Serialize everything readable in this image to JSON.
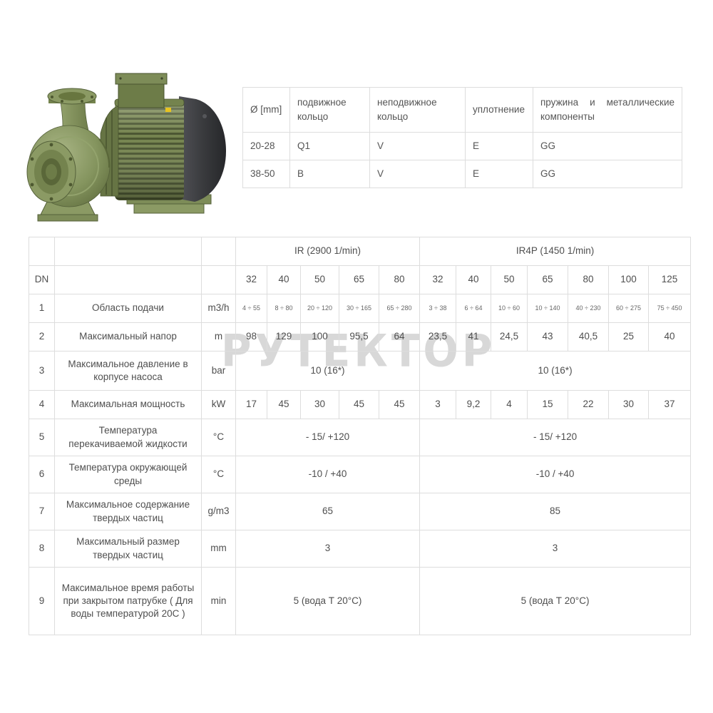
{
  "pump_photo": {
    "description": "green centrifugal pump with electric motor, front-left suction flange, top discharge flange, dark fan cover",
    "colors": {
      "green_light": "#a4b07e",
      "green_mid": "#7d8c58",
      "green_dark": "#55613a",
      "green_deep": "#454f2c",
      "fan_cover_dark": "#2e2f31",
      "fan_cover_light": "#515257",
      "label_yellow": "#e8c31f"
    }
  },
  "watermark": {
    "text": "РУТЕКТОР",
    "color": "#d4d4d4"
  },
  "seal_table": {
    "headers": [
      "Ø [mm]",
      "подвижное кольцо",
      "неподвижное кольцо",
      "уплотнение",
      "пружина и металлические компоненты"
    ],
    "rows": [
      [
        "20-28",
        "Q1",
        "V",
        "E",
        "GG"
      ],
      [
        "38-50",
        "B",
        "V",
        "E",
        "GG"
      ]
    ]
  },
  "spec_table": {
    "group_headers": [
      {
        "label": "IR (2900 1/min)",
        "span": 5
      },
      {
        "label": "IR4P (1450 1/min)",
        "span": 7
      }
    ],
    "dn_label": "DN",
    "dn_values": [
      "32",
      "40",
      "50",
      "65",
      "80",
      "32",
      "40",
      "50",
      "65",
      "80",
      "100",
      "125"
    ],
    "rows": [
      {
        "num": "1",
        "name": "Область подачи",
        "unit": "m3/h",
        "type": "cells",
        "small": true,
        "values": [
          "4 ÷ 55",
          "8 ÷ 80",
          "20 ÷ 120",
          "30 ÷ 165",
          "65 ÷ 280",
          "3 ÷ 38",
          "6 ÷ 64",
          "10 ÷ 60",
          "10 ÷ 140",
          "40 ÷ 230",
          "60 ÷ 275",
          "75 ÷ 450"
        ]
      },
      {
        "num": "2",
        "name": "Максимальный напор",
        "unit": "m",
        "type": "cells",
        "values": [
          "98",
          "129",
          "100",
          "95,5",
          "64",
          "23,5",
          "41",
          "24,5",
          "43",
          "40,5",
          "25",
          "40"
        ]
      },
      {
        "num": "3",
        "name": "Максимальное давление в корпусе насоса",
        "unit": "bar",
        "type": "merged",
        "ir": "10 (16*)",
        "ir4p": "10 (16*)"
      },
      {
        "num": "4",
        "name": "Максимальная мощность",
        "unit": "kW",
        "type": "cells",
        "values": [
          "17",
          "45",
          "30",
          "45",
          "45",
          "3",
          "9,2",
          "4",
          "15",
          "22",
          "30",
          "37"
        ]
      },
      {
        "num": "5",
        "name": "Температура перекачиваемой жидкости",
        "unit": "°C",
        "type": "merged",
        "ir": "- 15/ +120",
        "ir4p": "- 15/ +120"
      },
      {
        "num": "6",
        "name": "Температура окружающей среды",
        "unit": "°C",
        "type": "merged",
        "ir": "-10 / +40",
        "ir4p": "-10 / +40"
      },
      {
        "num": "7",
        "name": "Максимальное содержание твердых частиц",
        "unit": "g/m3",
        "type": "merged",
        "ir": "65",
        "ir4p": "85"
      },
      {
        "num": "8",
        "name": "Максимальный размер твердых частиц",
        "unit": "mm",
        "type": "merged",
        "ir": "3",
        "ir4p": "3"
      },
      {
        "num": "9",
        "name": "Максимальное время работы при закрытом патрубке ( Для воды температурой 20С )",
        "unit": "min",
        "type": "merged",
        "ir": "5 (вода Т 20°C)",
        "ir4p": "5 (вода Т 20°C)"
      }
    ]
  }
}
